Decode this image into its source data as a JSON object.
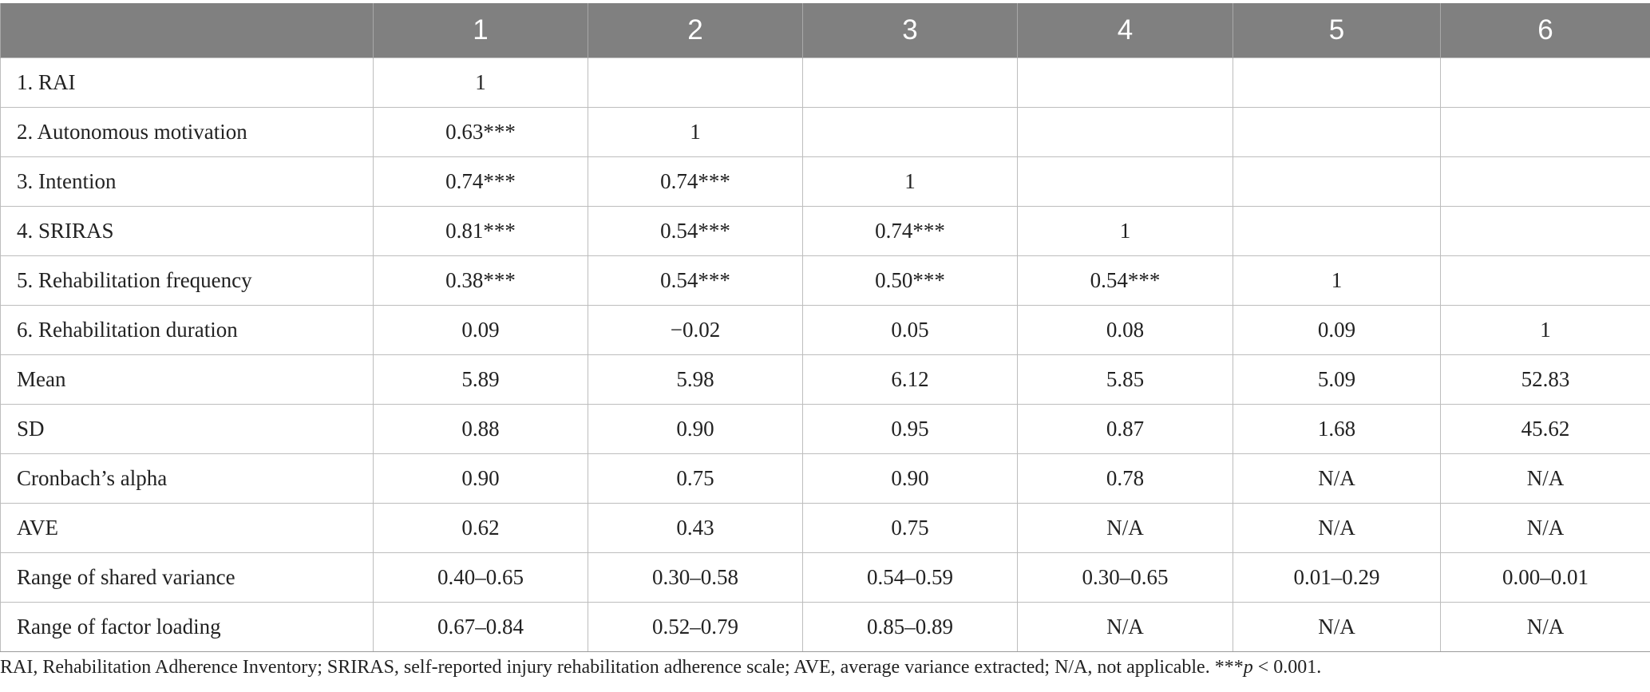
{
  "table": {
    "headers": [
      "",
      "1",
      "2",
      "3",
      "4",
      "5",
      "6"
    ],
    "rows": [
      {
        "label": "1. RAI",
        "cells": [
          "1",
          "",
          "",
          "",
          "",
          ""
        ]
      },
      {
        "label": "2. Autonomous motivation",
        "cells": [
          "0.63***",
          "1",
          "",
          "",
          "",
          ""
        ]
      },
      {
        "label": "3. Intention",
        "cells": [
          "0.74***",
          "0.74***",
          "1",
          "",
          "",
          ""
        ]
      },
      {
        "label": "4. SRIRAS",
        "cells": [
          "0.81***",
          "0.54***",
          "0.74***",
          "1",
          "",
          ""
        ]
      },
      {
        "label": "5. Rehabilitation frequency",
        "cells": [
          "0.38***",
          "0.54***",
          "0.50***",
          "0.54***",
          "1",
          ""
        ]
      },
      {
        "label": "6. Rehabilitation duration",
        "cells": [
          "0.09",
          "−0.02",
          "0.05",
          "0.08",
          "0.09",
          "1"
        ]
      },
      {
        "label": "Mean",
        "cells": [
          "5.89",
          "5.98",
          "6.12",
          "5.85",
          "5.09",
          "52.83"
        ]
      },
      {
        "label": "SD",
        "cells": [
          "0.88",
          "0.90",
          "0.95",
          "0.87",
          "1.68",
          "45.62"
        ]
      },
      {
        "label": "Cronbach’s alpha",
        "cells": [
          "0.90",
          "0.75",
          "0.90",
          "0.78",
          "N/A",
          "N/A"
        ]
      },
      {
        "label": "AVE",
        "cells": [
          "0.62",
          "0.43",
          "0.75",
          "N/A",
          "N/A",
          "N/A"
        ]
      },
      {
        "label": "Range of shared variance",
        "cells": [
          "0.40–0.65",
          "0.30–0.58",
          "0.54–0.59",
          "0.30–0.65",
          "0.01–0.29",
          "0.00–0.01"
        ]
      },
      {
        "label": "Range of factor loading",
        "cells": [
          "0.67–0.84",
          "0.52–0.79",
          "0.85–0.89",
          "N/A",
          "N/A",
          "N/A"
        ]
      }
    ]
  },
  "footnote": {
    "text": "RAI, Rehabilitation Adherence Inventory; SRIRAS, self-reported injury rehabilitation adherence scale; AVE, average variance extracted; N/A, not applicable. ***",
    "p_symbol": "p",
    "tail": " < 0.001."
  }
}
